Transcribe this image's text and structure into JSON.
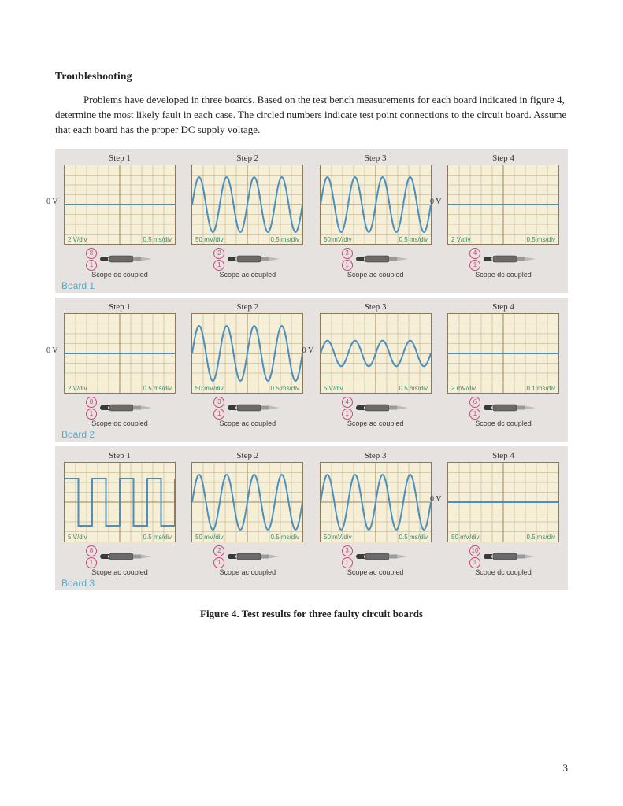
{
  "title": "Troubleshooting",
  "paragraph": "Problems have developed in three boards. Based on the test bench measurements for each board indicated in figure 4, determine the most likely fault in each case. The circled numbers indicate test point connections to the circuit board. Assume that each board has the proper DC supply voltage.",
  "figure_caption": "Figure 4. Test results for three faulty circuit boards",
  "page_number": "3",
  "colors": {
    "block_background": "#e6e2df",
    "scope_background": "#f6efd8",
    "scope_border": "#8a7a5a",
    "grid": "#b8a77a",
    "axis": "#9a8658",
    "wave": "#4a8fbf",
    "scale_text": "#3a8a6a",
    "board_label": "#5aa8c8",
    "pin_circle": "#c84a7a"
  },
  "boards": [
    {
      "label": "Board 1",
      "steps": [
        {
          "title": "Step 1",
          "waveform": "flat",
          "zero_label": "0 V",
          "v_div": "2 V/div",
          "t_div": "0.5 ms/div",
          "pins": [
            "8",
            "1"
          ],
          "coupling": "Scope dc coupled"
        },
        {
          "title": "Step 2",
          "waveform": "sine",
          "amplitude": 2.8,
          "cycles": 4,
          "v_div": "50 mV/div",
          "t_div": "0.5 ms/div",
          "pins": [
            "2",
            "1"
          ],
          "coupling": "Scope ac coupled"
        },
        {
          "title": "Step 3",
          "waveform": "sine",
          "amplitude": 2.8,
          "cycles": 4,
          "v_div": "50 mV/div",
          "t_div": "0.5 ms/div",
          "pins": [
            "3",
            "1"
          ],
          "coupling": "Scope ac coupled"
        },
        {
          "title": "Step 4",
          "waveform": "flat",
          "zero_label": "0 V",
          "v_div": "2 V/div",
          "t_div": "0.5 ms/div",
          "pins": [
            "4",
            "1"
          ],
          "coupling": "Scope dc coupled"
        }
      ]
    },
    {
      "label": "Board 2",
      "steps": [
        {
          "title": "Step 1",
          "waveform": "flat",
          "zero_label": "0 V",
          "v_div": "2 V/div",
          "t_div": "0.5 ms/div",
          "pins": [
            "8",
            "1"
          ],
          "coupling": "Scope dc coupled"
        },
        {
          "title": "Step 2",
          "waveform": "sine",
          "amplitude": 2.8,
          "cycles": 4,
          "v_div": "50 mV/div",
          "t_div": "0.5 ms/div",
          "pins": [
            "3",
            "1"
          ],
          "coupling": "Scope ac coupled"
        },
        {
          "title": "Step 3",
          "waveform": "sine",
          "amplitude": 1.3,
          "cycles": 4,
          "zero_label": "0 V",
          "v_div": "5 V/div",
          "t_div": "0.5 ms/div",
          "pins": [
            "4",
            "1"
          ],
          "coupling": "Scope ac coupled"
        },
        {
          "title": "Step 4",
          "waveform": "flat",
          "v_div": "2 mV/div",
          "t_div": "0.1 ms/div",
          "pins": [
            "6",
            "1"
          ],
          "coupling": "Scope dc coupled"
        }
      ]
    },
    {
      "label": "Board 3",
      "steps": [
        {
          "title": "Step 1",
          "waveform": "square",
          "amplitude": 2.4,
          "cycles": 4,
          "v_div": "5 V/div",
          "t_div": "0.5 ms/div",
          "pins": [
            "8",
            "1"
          ],
          "coupling": "Scope ac coupled"
        },
        {
          "title": "Step 2",
          "waveform": "sine",
          "amplitude": 2.8,
          "cycles": 4,
          "v_div": "50 mV/div",
          "t_div": "0.5 ms/div",
          "pins": [
            "2",
            "1"
          ],
          "coupling": "Scope ac coupled"
        },
        {
          "title": "Step 3",
          "waveform": "sine",
          "amplitude": 2.8,
          "cycles": 4,
          "v_div": "50 mV/div",
          "t_div": "0.5 ms/div",
          "pins": [
            "3",
            "1"
          ],
          "coupling": "Scope ac coupled"
        },
        {
          "title": "Step 4",
          "waveform": "flat",
          "zero_label": "0 V",
          "v_div": "50 mV/div",
          "t_div": "0.5 ms/div",
          "pins": [
            "10",
            "1"
          ],
          "coupling": "Scope dc coupled"
        }
      ]
    }
  ],
  "scope": {
    "width": 140,
    "height": 100,
    "h_divs": 10,
    "v_divs": 8
  },
  "probe_body_fill": "#6a6a6a"
}
